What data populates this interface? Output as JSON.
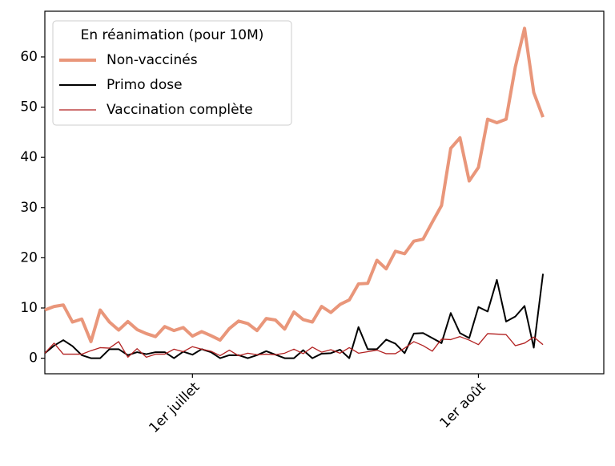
{
  "chart_data": {
    "type": "line",
    "categories": [
      null,
      null,
      null,
      null,
      null,
      null,
      null,
      null,
      null,
      null,
      null,
      null,
      null,
      null,
      null,
      null,
      "1er juillet",
      null,
      null,
      null,
      null,
      null,
      null,
      null,
      null,
      null,
      null,
      null,
      null,
      null,
      null,
      null,
      null,
      null,
      null,
      null,
      null,
      null,
      null,
      null,
      null,
      null,
      null,
      null,
      null,
      null,
      null,
      "1er août",
      null,
      null,
      null,
      null,
      null,
      null,
      null
    ],
    "legend_title": "En réanimation (pour 10M)",
    "legend": "upper left",
    "series": [
      {
        "name": "Non-vaccinés",
        "color": "#e9967a",
        "linewidth": 4,
        "values": [
          9.6,
          10.3,
          10.6,
          7.2,
          7.8,
          3.3,
          9.6,
          7.2,
          5.6,
          7.3,
          5.7,
          4.9,
          4.3,
          6.3,
          5.5,
          6.1,
          4.4,
          5.3,
          4.5,
          3.6,
          5.9,
          7.4,
          6.9,
          5.5,
          7.9,
          7.6,
          5.8,
          9.2,
          7.7,
          7.2,
          10.3,
          9.1,
          10.7,
          11.6,
          14.8,
          14.9,
          19.5,
          17.8,
          21.3,
          20.8,
          23.3,
          23.7,
          27.1,
          30.4,
          41.8,
          43.9,
          35.3,
          38.0,
          47.6,
          46.9,
          47.6,
          58.0,
          65.7,
          52.9,
          48.0
        ]
      },
      {
        "name": "Primo dose",
        "color": "#000000",
        "linewidth": 2,
        "values": [
          1.0,
          2.5,
          3.6,
          2.4,
          0.6,
          0,
          0,
          1.8,
          1.8,
          0.6,
          1.2,
          0.8,
          1.2,
          1.2,
          0,
          1.3,
          0.7,
          1.8,
          1.2,
          0,
          0.6,
          0.6,
          0,
          0.6,
          1.4,
          0.7,
          0,
          0,
          1.6,
          0,
          0.9,
          1.0,
          1.7,
          0,
          6.2,
          1.8,
          1.8,
          3.7,
          2.9,
          1.0,
          4.9,
          5.0,
          4.0,
          3.0,
          9.0,
          5.0,
          4.0,
          10.2,
          9.3,
          15.6,
          7.3,
          8.3,
          10.4,
          2.1,
          16.8
        ]
      },
      {
        "name": "Vaccination complète",
        "color": "#b22222",
        "linewidth": 1.3,
        "values": [
          1.0,
          3.0,
          0.8,
          0.8,
          0.8,
          1.5,
          2.1,
          2.0,
          3.3,
          0.2,
          1.9,
          0.2,
          0.8,
          0.8,
          1.8,
          1.3,
          2.3,
          1.8,
          1.4,
          0.5,
          1.6,
          0.5,
          1.0,
          0.7,
          0.8,
          0.7,
          1.0,
          1.8,
          0.9,
          2.2,
          1.2,
          1.7,
          1.0,
          2.1,
          1.0,
          1.3,
          1.6,
          0.9,
          0.9,
          2.0,
          3.3,
          2.5,
          1.4,
          3.8,
          3.7,
          4.3,
          3.6,
          2.7,
          4.9,
          4.8,
          4.7,
          2.5,
          3.0,
          4.2,
          2.7
        ]
      }
    ],
    "ylim": [
      -3.1,
      69.1
    ],
    "yticks": [
      0,
      10,
      20,
      30,
      40,
      50,
      60
    ]
  }
}
